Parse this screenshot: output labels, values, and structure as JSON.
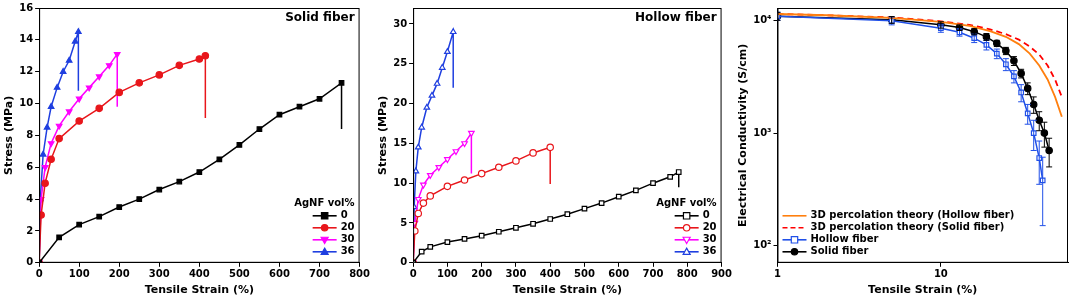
{
  "chart_data": [
    {
      "type": "line",
      "title": "Solid fiber",
      "x_label": "Tensile Strain (%)",
      "y_label": "Stress (MPa)",
      "xlim": [
        0,
        800
      ],
      "xticks": [
        0,
        100,
        200,
        300,
        400,
        500,
        600,
        700,
        800
      ],
      "ylim": [
        0,
        16
      ],
      "yticks": [
        0,
        2,
        4,
        6,
        8,
        10,
        12,
        14,
        16
      ],
      "grid": false,
      "legend": "bottom right",
      "legend_title": "AgNF vol%",
      "series": [
        {
          "name": "0",
          "color": "#000000",
          "marker": "square",
          "line_style": "solid",
          "x": [
            0,
            50,
            100,
            150,
            200,
            250,
            300,
            350,
            400,
            450,
            500,
            550,
            600,
            650,
            700,
            755,
            755
          ],
          "values": [
            0,
            1.6,
            2.4,
            2.9,
            3.5,
            4.0,
            4.6,
            5.1,
            5.7,
            6.5,
            7.4,
            8.4,
            9.3,
            9.8,
            10.3,
            11.3,
            8.4
          ]
        },
        {
          "name": "20",
          "color": "#e8161b",
          "marker": "circle",
          "line_style": "solid",
          "x": [
            0,
            5,
            15,
            30,
            50,
            100,
            150,
            200,
            250,
            300,
            350,
            400,
            415,
            415
          ],
          "values": [
            0,
            3.0,
            5.0,
            6.5,
            7.8,
            8.9,
            9.7,
            10.7,
            11.3,
            11.8,
            12.4,
            12.8,
            13.0,
            9.1
          ]
        },
        {
          "name": "30",
          "color": "#ff00ff",
          "marker": "triangle_down",
          "line_style": "solid",
          "x": [
            0,
            5,
            15,
            30,
            50,
            75,
            100,
            125,
            150,
            175,
            195,
            195
          ],
          "values": [
            0,
            4.0,
            6.0,
            7.5,
            8.6,
            9.5,
            10.3,
            11.0,
            11.7,
            12.4,
            13.1,
            9.8
          ]
        },
        {
          "name": "36",
          "color": "#1f3fe0",
          "marker": "triangle",
          "line_style": "solid",
          "x": [
            0,
            3,
            10,
            20,
            30,
            45,
            60,
            75,
            90,
            98,
            98
          ],
          "values": [
            0,
            4.0,
            6.8,
            8.5,
            9.8,
            11.0,
            12.0,
            12.7,
            13.9,
            14.5,
            10.8
          ]
        }
      ]
    },
    {
      "type": "line",
      "title": "Hollow fiber",
      "x_label": "Tensile Strain (%)",
      "y_label": "Stress (MPa)",
      "xlim": [
        0,
        900
      ],
      "xticks": [
        0,
        100,
        200,
        300,
        400,
        500,
        600,
        700,
        800,
        900
      ],
      "ylim": [
        0,
        32
      ],
      "yticks": [
        0,
        5,
        10,
        15,
        20,
        25,
        30
      ],
      "grid": false,
      "legend": "bottom right",
      "legend_title": "AgNF vol%",
      "series": [
        {
          "name": "0",
          "color": "#000000",
          "marker": "square_open",
          "line_style": "solid",
          "x": [
            0,
            25,
            50,
            100,
            150,
            200,
            250,
            300,
            350,
            400,
            450,
            500,
            550,
            600,
            650,
            700,
            750,
            775,
            775
          ],
          "values": [
            0,
            1.4,
            2.0,
            2.6,
            3.0,
            3.4,
            3.9,
            4.4,
            4.9,
            5.5,
            6.1,
            6.8,
            7.5,
            8.3,
            9.1,
            10.0,
            10.8,
            11.4,
            9.5
          ]
        },
        {
          "name": "20",
          "color": "#e8161b",
          "marker": "circle_open",
          "line_style": "solid",
          "x": [
            0,
            5,
            15,
            30,
            50,
            100,
            150,
            200,
            250,
            300,
            350,
            400,
            400
          ],
          "values": [
            0,
            4.0,
            6.2,
            7.5,
            8.4,
            9.6,
            10.4,
            11.2,
            12.0,
            12.8,
            13.8,
            14.5,
            9.9
          ]
        },
        {
          "name": "30",
          "color": "#ff00ff",
          "marker": "triangle_down_open",
          "line_style": "solid",
          "x": [
            0,
            5,
            15,
            30,
            50,
            75,
            100,
            125,
            150,
            170,
            170
          ],
          "values": [
            0,
            5.0,
            8.0,
            9.8,
            11.0,
            12.0,
            13.0,
            14.0,
            15.0,
            16.3,
            11.2
          ]
        },
        {
          "name": "36",
          "color": "#1f3fe0",
          "marker": "triangle_open",
          "line_style": "solid",
          "x": [
            0,
            3,
            8,
            15,
            25,
            40,
            55,
            70,
            85,
            100,
            117,
            117
          ],
          "values": [
            0,
            7.0,
            11.5,
            14.5,
            17.0,
            19.5,
            21.0,
            22.5,
            24.5,
            26.5,
            29.0,
            22.0
          ]
        }
      ]
    },
    {
      "type": "line",
      "x_label": "Tensile Strain (%)",
      "y_label": "Electrical Conductivity (S/cm)",
      "log": true,
      "xlim": [
        1,
        60
      ],
      "xticks": [
        1,
        10
      ],
      "ylim": [
        70,
        13000
      ],
      "yticks": [
        {
          "value": 100,
          "label": "10²"
        },
        {
          "value": 1000,
          "label": "10³"
        },
        {
          "value": 10000,
          "label": "10⁴"
        }
      ],
      "grid": false,
      "legend": "bottom left",
      "series": [
        {
          "name": "3D percolation theory (Hollow fiber)",
          "color": "#ff7f0e",
          "marker": "none",
          "line_style": "solid",
          "x": [
            1,
            2,
            5,
            10,
            15,
            20,
            25,
            30,
            35,
            40,
            45,
            50,
            55
          ],
          "values": [
            11500,
            11200,
            10600,
            9800,
            9000,
            8100,
            7200,
            6200,
            5100,
            4000,
            3000,
            2100,
            1400
          ]
        },
        {
          "name": "3D percolation theory (Solid fiber)",
          "color": "#ff0000",
          "marker": "none",
          "line_style": "dashed",
          "x": [
            1,
            2,
            5,
            10,
            15,
            20,
            25,
            30,
            35,
            40,
            45,
            50,
            55
          ],
          "values": [
            11500,
            11200,
            10700,
            9900,
            9200,
            8400,
            7600,
            6800,
            5900,
            5000,
            4000,
            3000,
            2100
          ]
        },
        {
          "name": "Hollow fiber",
          "color": "#2050e8",
          "marker": "square_open",
          "line_style": "solid",
          "x": [
            1,
            5,
            10,
            13,
            16,
            19,
            22,
            25,
            28,
            31,
            34,
            37,
            40,
            42
          ],
          "values": [
            11000,
            10000,
            8600,
            7900,
            7000,
            6100,
            5100,
            4100,
            3200,
            2300,
            1500,
            1000,
            600,
            380
          ],
          "errors": [
            900,
            800,
            700,
            600,
            600,
            600,
            500,
            500,
            400,
            400,
            300,
            300,
            250,
            230
          ]
        },
        {
          "name": "Solid fiber",
          "color": "#000000",
          "marker": "circle",
          "line_style": "solid",
          "x": [
            1,
            5,
            10,
            13,
            16,
            19,
            22,
            25,
            28,
            31,
            34,
            37,
            40,
            43,
            46
          ],
          "values": [
            11000,
            10200,
            9200,
            8700,
            8000,
            7200,
            6300,
            5400,
            4400,
            3400,
            2500,
            1800,
            1300,
            1000,
            700
          ],
          "errors": [
            900,
            700,
            600,
            500,
            500,
            500,
            400,
            400,
            400,
            300,
            300,
            300,
            250,
            250,
            200
          ]
        }
      ]
    }
  ]
}
